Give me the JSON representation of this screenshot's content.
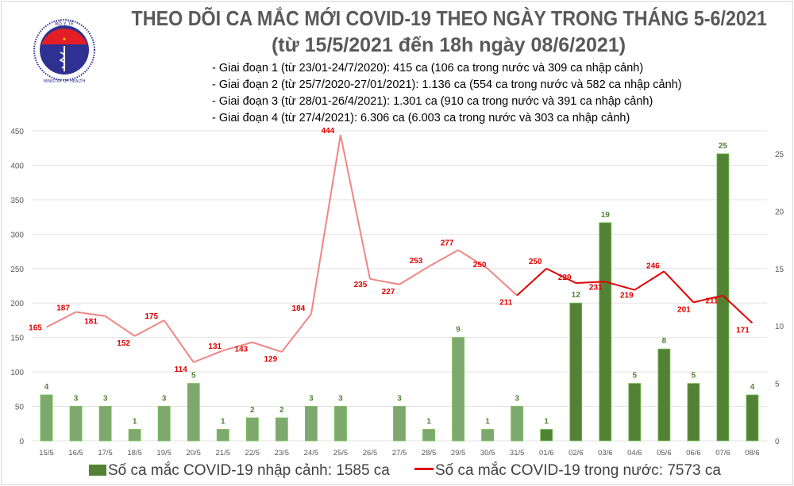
{
  "logo": {
    "top_text": "BỘ Y TẾ",
    "bottom_text": "MINISTRY OF HEALTH"
  },
  "title": "THEO DÕI CA MẮC MỚI COVID-19 THEO NGÀY TRONG THÁNG 5-6/2021",
  "subtitle": "(từ 15/5/2021 đến 18h ngày 08/6/2021)",
  "stages": [
    "- Giai đoạn 1 (từ 23/01-24/7/2020): 415 ca (106 ca trong nước và 309 ca nhập cảnh)",
    "- Giai đoạn 2 (từ 25/7/2020-27/01/2021): 1.136 ca (554 ca trong nước và 582 ca nhập cảnh)",
    "- Giai đoạn 3 (từ 28/01-26/4/2021): 1.301 ca (910 ca trong nước và 391 ca nhập cảnh)",
    "- Giai đoạn 4 (từ 27/4/2021): 6.306 ca (6.003 ca trong nước và 303 ca nhập cảnh)"
  ],
  "chart_data": {
    "type": "bar+line",
    "categories": [
      "15/5",
      "16/5",
      "17/5",
      "18/5",
      "19/5",
      "20/5",
      "21/5",
      "22/5",
      "23/5",
      "24/5",
      "25/5",
      "26/5",
      "27/5",
      "28/5",
      "29/5",
      "30/5",
      "31/5",
      "01/6",
      "02/6",
      "03/6",
      "04/6",
      "05/6",
      "06/6",
      "07/6",
      "08/6"
    ],
    "series": [
      {
        "name": "Số ca mắc COVID-19 nhập cảnh: 1585 ca",
        "type": "bar",
        "axis": "right",
        "values": [
          4,
          3,
          3,
          1,
          3,
          5,
          1,
          2,
          2,
          3,
          3,
          0,
          3,
          1,
          9,
          1,
          3,
          1,
          12,
          19,
          5,
          8,
          5,
          25,
          4
        ],
        "colors": {
          "light": "#7fa86e",
          "dark": "#548235",
          "label": "#548235"
        }
      },
      {
        "name": "Số ca mắc COVID-19 trong nước: 7573 ca",
        "type": "line",
        "axis": "left",
        "values": [
          165,
          187,
          181,
          152,
          175,
          114,
          131,
          143,
          129,
          184,
          444,
          235,
          227,
          253,
          277,
          250,
          211,
          250,
          229,
          231,
          219,
          246,
          201,
          211,
          171
        ],
        "colors": {
          "light": "#f08585",
          "dark": "#e00000",
          "label": "#e00000"
        }
      }
    ],
    "left_axis": {
      "ylim": [
        0,
        450
      ],
      "ticks": [
        0,
        50,
        100,
        150,
        200,
        250,
        300,
        350,
        400,
        450
      ]
    },
    "right_axis": {
      "ylim": [
        0,
        27
      ],
      "ticks": [
        0,
        5,
        10,
        15,
        20,
        25
      ]
    },
    "grid": true,
    "legend": "bottom"
  }
}
